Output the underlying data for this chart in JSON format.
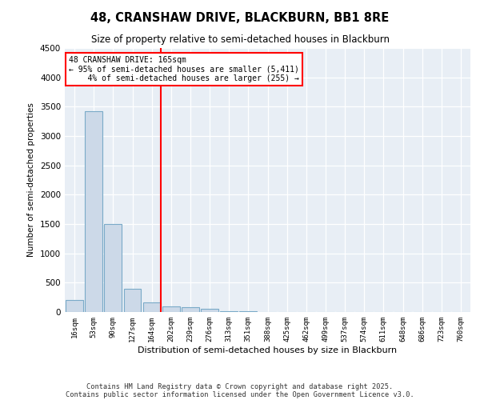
{
  "title1": "48, CRANSHAW DRIVE, BLACKBURN, BB1 8RE",
  "title2": "Size of property relative to semi-detached houses in Blackburn",
  "xlabel": "Distribution of semi-detached houses by size in Blackburn",
  "ylabel": "Number of semi-detached properties",
  "bins": [
    "16sqm",
    "53sqm",
    "90sqm",
    "127sqm",
    "164sqm",
    "202sqm",
    "239sqm",
    "276sqm",
    "313sqm",
    "351sqm",
    "388sqm",
    "425sqm",
    "462sqm",
    "499sqm",
    "537sqm",
    "574sqm",
    "611sqm",
    "648sqm",
    "686sqm",
    "723sqm",
    "760sqm"
  ],
  "values": [
    200,
    3420,
    1500,
    400,
    160,
    100,
    80,
    50,
    20,
    20,
    5,
    2,
    0,
    0,
    0,
    0,
    0,
    0,
    0,
    0,
    0
  ],
  "bar_color": "#ccd9e8",
  "bar_edge_color": "#7aaac8",
  "red_line_index": 4,
  "annotation_line1": "48 CRANSHAW DRIVE: 165sqm",
  "annotation_line2": "← 95% of semi-detached houses are smaller (5,411)",
  "annotation_line3": "    4% of semi-detached houses are larger (255) →",
  "ylim": [
    0,
    4500
  ],
  "yticks": [
    0,
    500,
    1000,
    1500,
    2000,
    2500,
    3000,
    3500,
    4000,
    4500
  ],
  "footer_line1": "Contains HM Land Registry data © Crown copyright and database right 2025.",
  "footer_line2": "Contains public sector information licensed under the Open Government Licence v3.0.",
  "bg_color": "#e8eef5",
  "fig_bg_color": "#ffffff"
}
